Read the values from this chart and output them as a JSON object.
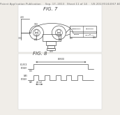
{
  "bg_color": "#ffffff",
  "page_bg": "#f0ede8",
  "header_text": "Patent Application Publication     Sep. 17, 2013   Sheet 11 of 14     US 2013/0244367 A1",
  "header_fontsize": 2.8,
  "fig7_label": "FIG. 7",
  "fig8_label": "FIG. 8",
  "gray": "#444444",
  "lgray": "#999999",
  "line_color": "#555555"
}
